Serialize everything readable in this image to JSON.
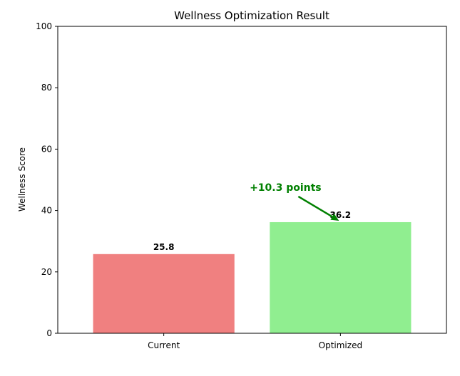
{
  "chart_data": {
    "type": "bar",
    "title": "Wellness Optimization Result",
    "xlabel": "",
    "ylabel": "Wellness Score",
    "categories": [
      "Current",
      "Optimized"
    ],
    "values": [
      25.8,
      36.2
    ],
    "value_labels": [
      "25.8",
      "36.2"
    ],
    "colors": [
      "#f08080",
      "#90ee90"
    ],
    "ylim": [
      0,
      100
    ],
    "yticks": [
      0,
      20,
      40,
      60,
      80,
      100
    ],
    "grid": false,
    "annotation": {
      "text": "+10.3 points",
      "color": "#008000",
      "arrow_target": {
        "category": "Optimized",
        "value": 36.2
      }
    }
  }
}
